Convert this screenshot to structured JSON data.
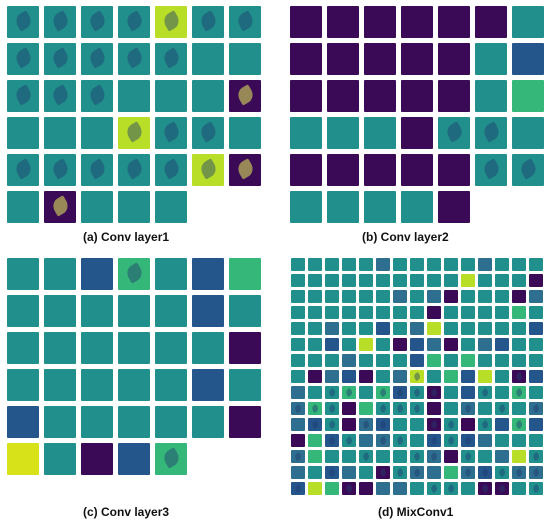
{
  "colors": {
    "dark_purple": "#3b0a57",
    "navy": "#24558b",
    "blue": "#2e6e8e",
    "teal": "#21908c",
    "green": "#35b779",
    "lime": "#b9de28",
    "yellow": "#d7e219"
  },
  "panels": [
    {
      "id": "a",
      "caption": "(a) Conv layer1",
      "cols": 7,
      "tiles": [
        "teal-leaf",
        "teal-leaf",
        "teal-leaf",
        "teal-leaf",
        "lime-leaf",
        "teal-leaf",
        "teal-leaf",
        "teal-leaf",
        "teal-leaf",
        "teal-leaf",
        "teal-leaf",
        "teal-leaf",
        "teal",
        "teal",
        "teal-leaf",
        "teal-leaf",
        "teal-leaf",
        "teal",
        "teal",
        "teal",
        "dark-leaf",
        "teal",
        "teal",
        "teal",
        "lime-leaf",
        "teal-leaf",
        "teal-leaf",
        "teal",
        "teal-leaf",
        "teal-leaf",
        "teal-leaf",
        "teal-leaf",
        "teal-leaf",
        "lime-leaf",
        "dark-leaf",
        "teal",
        "dark-leaf",
        "teal",
        "teal",
        "teal"
      ]
    },
    {
      "id": "b",
      "caption": "(b) Conv layer2",
      "cols": 7,
      "tiles": [
        "dark",
        "dark",
        "dark",
        "dark",
        "dark",
        "dark",
        "teal",
        "dark",
        "dark",
        "dark",
        "dark",
        "dark",
        "teal",
        "navy",
        "dark",
        "dark",
        "dark",
        "dark",
        "dark",
        "teal",
        "green",
        "teal",
        "teal",
        "teal",
        "dark",
        "teal-leaf",
        "teal-leaf",
        "teal",
        "dark",
        "dark",
        "dark",
        "dark",
        "dark",
        "teal-leaf",
        "teal-leaf",
        "teal",
        "teal",
        "teal",
        "teal",
        "dark"
      ]
    },
    {
      "id": "c",
      "caption": "(c) Conv layer3",
      "cols": 7,
      "tiles": [
        "teal",
        "teal",
        "navy",
        "green-leaf",
        "teal",
        "navy",
        "green",
        "teal",
        "teal",
        "teal",
        "teal",
        "teal",
        "navy",
        "teal",
        "teal",
        "teal",
        "teal",
        "teal",
        "teal",
        "teal",
        "dark",
        "teal",
        "teal",
        "teal",
        "teal",
        "teal",
        "navy",
        "teal",
        "navy",
        "teal",
        "teal",
        "teal",
        "teal",
        "teal",
        "dark",
        "yellow",
        "teal",
        "dark",
        "navy",
        "green-leaf"
      ]
    },
    {
      "id": "d",
      "caption": "(d) MixConv1",
      "cols": 15,
      "rows": 15
    }
  ]
}
